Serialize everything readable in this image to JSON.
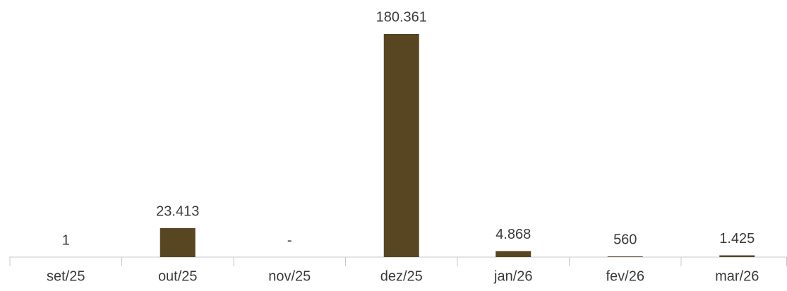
{
  "chart_data": {
    "type": "bar",
    "categories": [
      "set/25",
      "out/25",
      "nov/25",
      "dez/25",
      "jan/26",
      "fev/26",
      "mar/26"
    ],
    "values": [
      1,
      23413,
      0,
      180361,
      4868,
      560,
      1425
    ],
    "value_labels": [
      "1",
      "23.413",
      "-",
      "180.361",
      "4.868",
      "560",
      "1.425"
    ],
    "color": "#584623"
  }
}
